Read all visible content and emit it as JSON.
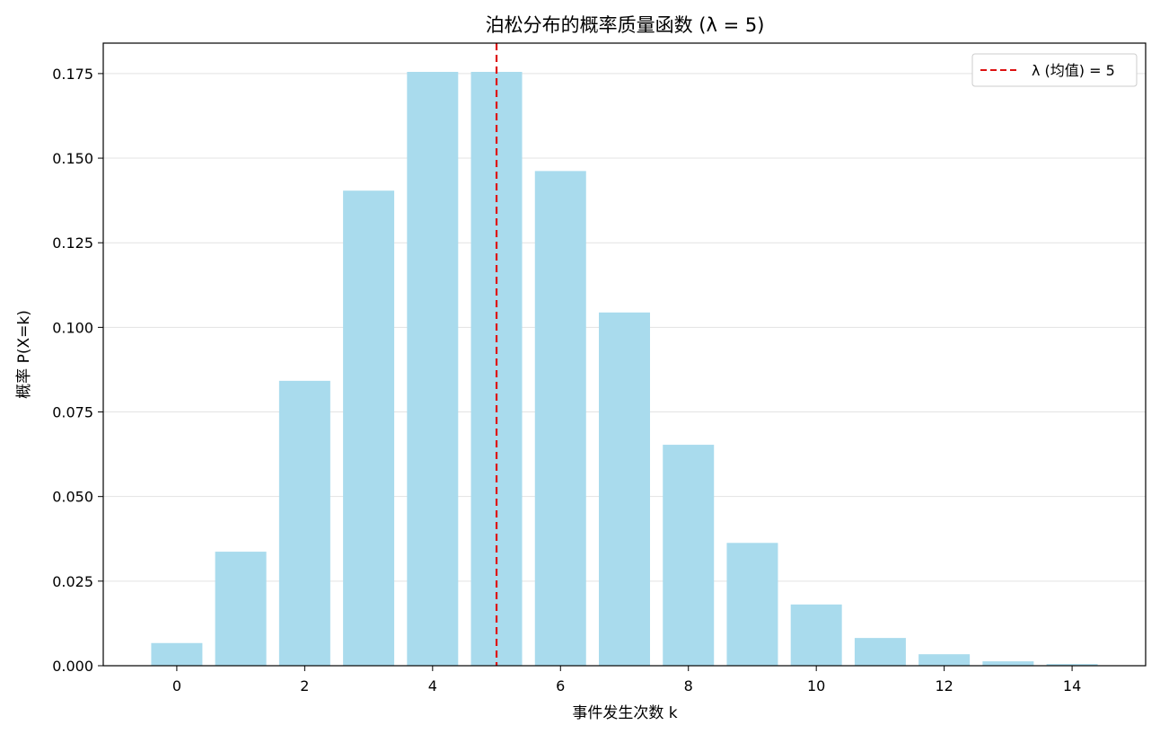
{
  "chart_data": {
    "type": "bar",
    "title": "泊松分布的概率质量函数 (λ = 5)",
    "xlabel": "事件发生次数 k",
    "ylabel": "概率 P(X=k)",
    "x": [
      0,
      1,
      2,
      3,
      4,
      5,
      6,
      7,
      8,
      9,
      10,
      11,
      12,
      13,
      14
    ],
    "values": [
      0.0067,
      0.0337,
      0.0842,
      0.1404,
      0.1755,
      0.1755,
      0.1462,
      0.1044,
      0.0653,
      0.0363,
      0.0181,
      0.0082,
      0.0034,
      0.0013,
      0.0005
    ],
    "xlim": [
      -1.15,
      15.15
    ],
    "ylim": [
      0,
      0.184
    ],
    "xticks": [
      0,
      2,
      4,
      6,
      8,
      10,
      12,
      14
    ],
    "yticks": [
      0.0,
      0.025,
      0.05,
      0.075,
      0.1,
      0.125,
      0.15,
      0.175
    ],
    "ytick_labels": [
      "0.000",
      "0.025",
      "0.050",
      "0.075",
      "0.100",
      "0.125",
      "0.150",
      "0.175"
    ],
    "grid": "y",
    "bar_color": "#a9dbed",
    "mean_line": {
      "x": 5,
      "color": "#dd1111",
      "style": "dashed"
    },
    "legend": {
      "placement": "top-right",
      "entries": [
        "λ (均值) = 5"
      ]
    }
  }
}
